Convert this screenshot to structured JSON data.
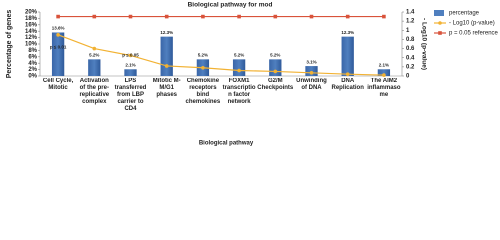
{
  "chart_data": {
    "type": "bar",
    "title": "Biological pathway for mod",
    "x_label": "Biological pathway",
    "y_label": "Percentage of genes",
    "y2_label": "- Log10 (p-value)",
    "categories": [
      "Cell Cycle, Mitotic",
      "Activation of the pre-replicative complex",
      "LPS transferred from LBP carrier to CD4",
      "Mitotic M-M/G1 phases",
      "Chemokine receptors bind chemokines",
      "FOXM1 transcription factor network",
      "G2/M Checkpoints",
      "Unwinding of DNA",
      "DNA Replication",
      "The AIM2 inflammasome"
    ],
    "series": [
      {
        "name": "percentage",
        "type": "bar",
        "color": "#4f7fbf",
        "values": [
          13.6,
          5.2,
          2.1,
          12.3,
          5.2,
          5.2,
          5.2,
          3.1,
          12.3,
          2.1
        ],
        "value_labels": [
          "13.6%",
          "5.2%",
          "2.1%",
          "12.3%",
          "5.2%",
          "5.2%",
          "5.2%",
          "3.1%",
          "12.3%",
          "2.1%"
        ]
      },
      {
        "name": "- Log10 (p-value)",
        "type": "line",
        "axis": "y2",
        "color": "#f2b233",
        "values": [
          0.9,
          0.6,
          0.45,
          0.22,
          0.18,
          0.12,
          0.1,
          0.07,
          0.04,
          0.02
        ]
      },
      {
        "name": "p = 0.05 reference",
        "type": "line",
        "axis": "y2",
        "color": "#d9533b",
        "values": [
          1.3,
          1.3,
          1.3,
          1.3,
          1.3,
          1.3,
          1.3,
          1.3,
          1.3,
          1.3
        ]
      }
    ],
    "annotations": [
      "p ≤ 0.01",
      "p ≤ 0.05"
    ],
    "ylim": [
      0,
      20
    ],
    "yticks": [
      {
        "value": 0,
        "label": "0%"
      },
      {
        "value": 2,
        "label": "2%"
      },
      {
        "value": 4,
        "label": "4%"
      },
      {
        "value": 6,
        "label": "6%"
      },
      {
        "value": 8,
        "label": "8%"
      },
      {
        "value": 10,
        "label": "10%"
      },
      {
        "value": 12,
        "label": "12%"
      },
      {
        "value": 14,
        "label": "14%"
      },
      {
        "value": 16,
        "label": "16%"
      },
      {
        "value": 18,
        "label": "18%"
      },
      {
        "value": 20,
        "label": "20%"
      }
    ],
    "y2lim": [
      0,
      1.4
    ],
    "y2ticks": [
      0,
      0.2,
      0.4,
      0.6,
      0.8,
      1,
      1.2,
      1.4
    ],
    "legend": "right"
  }
}
